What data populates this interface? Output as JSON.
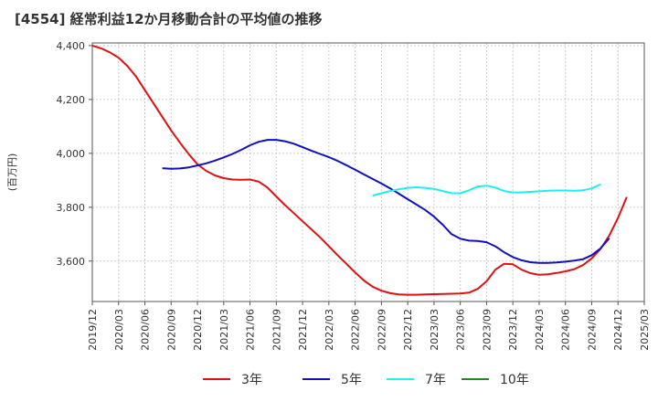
{
  "title": "[4554]  経常利益12か月移動合計の平均値の推移",
  "chart_data": {
    "type": "line",
    "title": "[4554]  経常利益12か月移動合計の平均値の推移",
    "ylabel": "(百万円)",
    "xlabel": "",
    "ylim": [
      3450,
      4410
    ],
    "y_ticks": [
      3600,
      3800,
      4000,
      4200,
      4400
    ],
    "y_tick_labels": [
      "3,600",
      "3,800",
      "4,000",
      "4,200",
      "4,400"
    ],
    "x_tick_labels": [
      "2019/12",
      "2020/03",
      "2020/06",
      "2020/09",
      "2020/12",
      "2021/03",
      "2021/06",
      "2021/09",
      "2021/12",
      "2022/03",
      "2022/06",
      "2022/09",
      "2022/12",
      "2023/03",
      "2023/06",
      "2023/09",
      "2023/12",
      "2024/03",
      "2024/06",
      "2024/09",
      "2024/12",
      "2025/03"
    ],
    "grid": true,
    "legend_position": "bottom",
    "series": [
      {
        "name": "3年",
        "color": "#dd1111",
        "start": "2019/12",
        "values": [
          4400,
          4390,
          4375,
          4355,
          4325,
          4285,
          4235,
          4185,
          4135,
          4085,
          4040,
          3997,
          3960,
          3935,
          3918,
          3908,
          3903,
          3902,
          3903,
          3895,
          3873,
          3840,
          3808,
          3778,
          3748,
          3718,
          3688,
          3655,
          3622,
          3590,
          3558,
          3528,
          3505,
          3490,
          3481,
          3476,
          3475,
          3475,
          3476,
          3477,
          3478,
          3479,
          3480,
          3483,
          3497,
          3525,
          3568,
          3590,
          3588,
          3568,
          3555,
          3549,
          3551,
          3556,
          3562,
          3570,
          3585,
          3610,
          3645,
          3695,
          3760,
          3838
        ]
      },
      {
        "name": "5年",
        "color": "#1111bb",
        "start": "2020/08",
        "values": [
          3945,
          3943,
          3944,
          3948,
          3955,
          3963,
          3973,
          3985,
          3998,
          4013,
          4030,
          4043,
          4050,
          4050,
          4045,
          4036,
          4023,
          4010,
          3998,
          3986,
          3972,
          3956,
          3939,
          3922,
          3905,
          3888,
          3870,
          3850,
          3830,
          3810,
          3790,
          3765,
          3735,
          3700,
          3683,
          3676,
          3675,
          3670,
          3655,
          3633,
          3615,
          3603,
          3596,
          3593,
          3593,
          3595,
          3598,
          3602,
          3607,
          3622,
          3647,
          3685
        ]
      },
      {
        "name": "7年",
        "color": "#22eeee",
        "start": "2022/08",
        "values": [
          3843,
          3852,
          3860,
          3867,
          3872,
          3874,
          3872,
          3868,
          3860,
          3852,
          3852,
          3863,
          3877,
          3880,
          3873,
          3860,
          3855,
          3855,
          3857,
          3859,
          3861,
          3862,
          3862,
          3861,
          3863,
          3870,
          3885
        ]
      },
      {
        "name": "10年",
        "color": "#228822",
        "start": "2024/12",
        "values": []
      }
    ]
  }
}
